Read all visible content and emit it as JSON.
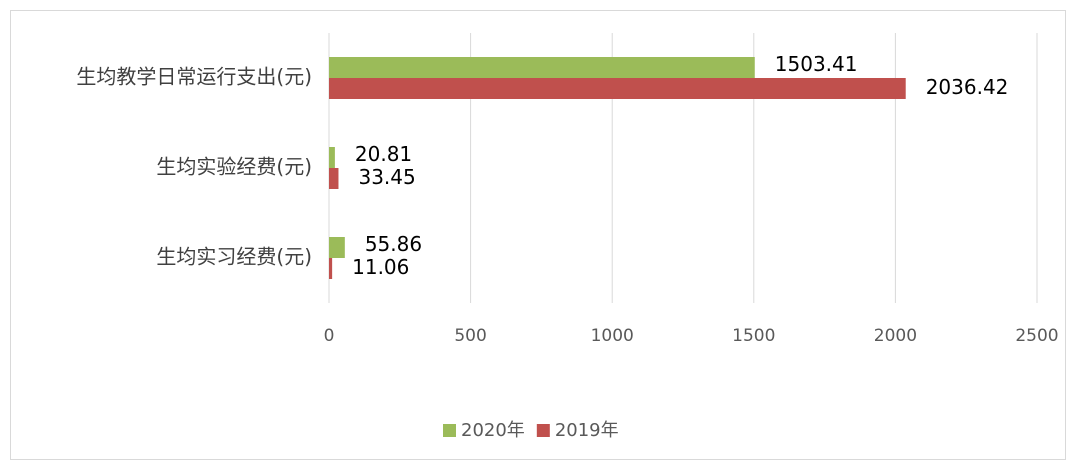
{
  "chart_data": {
    "type": "barh",
    "categories": [
      "生均教学日常运行支出(元)",
      "生均实验经费(元)",
      "生均实习经费(元)"
    ],
    "series": [
      {
        "name": "2020年",
        "color": "#9bbb59",
        "values": [
          1503.41,
          20.81,
          55.86
        ]
      },
      {
        "name": "2019年",
        "color": "#c0504d",
        "values": [
          2036.42,
          33.45,
          11.06
        ]
      }
    ],
    "xlim": [
      0,
      2500
    ],
    "xticks": [
      0,
      500,
      1000,
      1500,
      2000,
      2500
    ],
    "grid": true,
    "legend": "bottom"
  }
}
